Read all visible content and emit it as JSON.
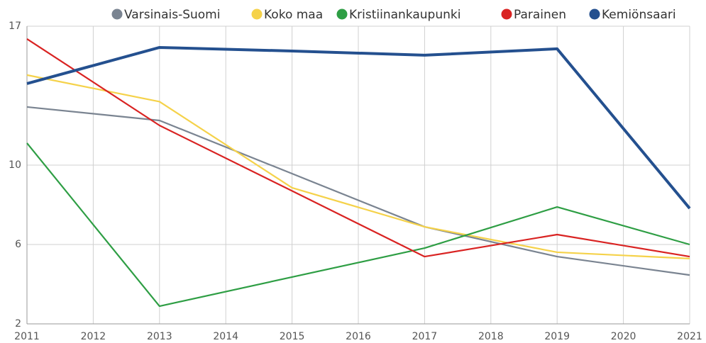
{
  "chart_data": {
    "type": "line",
    "x": [
      2011,
      2013,
      2015,
      2017,
      2019,
      2021
    ],
    "xlim": [
      2011,
      2021
    ],
    "xticks": [
      2011,
      2012,
      2013,
      2014,
      2015,
      2016,
      2017,
      2018,
      2019,
      2020,
      2021
    ],
    "ylim": [
      2,
      17
    ],
    "yticks": [
      2,
      6,
      10,
      17
    ],
    "grid": true,
    "legend": "top",
    "series": [
      {
        "name": "Varsinais-Suomi",
        "color": "#7a8491",
        "values": [
          12.93,
          12.25,
          9.57,
          6.89,
          5.39,
          4.46
        ]
      },
      {
        "name": "Koko maa",
        "color": "#f5d24a",
        "values": [
          14.54,
          13.2,
          8.86,
          6.89,
          5.61,
          5.29
        ]
      },
      {
        "name": "Kristiinankaupunki",
        "color": "#2e9e44",
        "values": [
          11.11,
          2.89,
          4.36,
          5.82,
          7.89,
          6.0
        ]
      },
      {
        "name": "Parainen",
        "color": "#d92322",
        "values": [
          16.36,
          12.0,
          8.7,
          5.39,
          6.5,
          5.39
        ]
      },
      {
        "name": "Kemiönsaari",
        "color": "#24508f",
        "values": [
          14.11,
          15.93,
          15.75,
          15.54,
          15.86,
          7.82
        ]
      }
    ]
  }
}
